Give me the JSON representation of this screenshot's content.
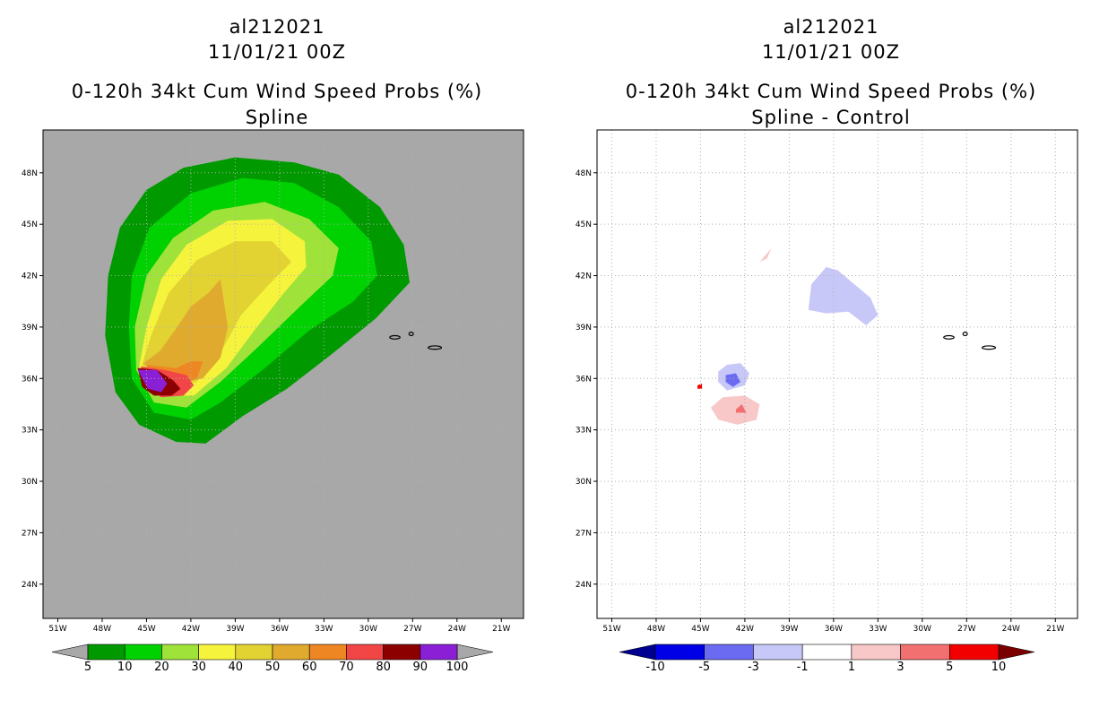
{
  "panels": [
    {
      "storm_id": "al212021",
      "date": "11/01/21 00Z",
      "product": "0-120h 34kt Cum Wind Speed Probs (%)",
      "subtitle": "Spline",
      "colorbar": {
        "labels": [
          "5",
          "10",
          "20",
          "30",
          "40",
          "50",
          "60",
          "70",
          "80",
          "90",
          "100"
        ],
        "colors": [
          "#009a00",
          "#00d100",
          "#9fe23a",
          "#f6f33d",
          "#e2d332",
          "#e0aa2e",
          "#ee8623",
          "#f24646",
          "#8c0000",
          "#8a1fd6"
        ],
        "under_color": "#a8a8a8",
        "over_color": "#a8a8a8"
      }
    },
    {
      "storm_id": "al212021",
      "date": "11/01/21 00Z",
      "product": "0-120h 34kt Cum Wind Speed Probs (%)",
      "subtitle": "Spline - Control",
      "colorbar": {
        "labels": [
          "-10",
          "-5",
          "-3",
          "-1",
          "1",
          "3",
          "5",
          "10"
        ],
        "colors": [
          "#0000e6",
          "#6b6bf2",
          "#c8c8f8",
          "#ffffff",
          "#f8c8c8",
          "#f27070",
          "#f20000"
        ],
        "under_color": "#000090",
        "over_color": "#7a0000"
      }
    }
  ],
  "chart_data": {
    "type": "heatmap",
    "projection": "lat-lon",
    "lon_ticks": [
      "51W",
      "48W",
      "45W",
      "42W",
      "39W",
      "36W",
      "33W",
      "30W",
      "27W",
      "24W",
      "21W"
    ],
    "lat_ticks": [
      "48N",
      "45N",
      "42N",
      "39N",
      "36N",
      "33N",
      "30N",
      "27N",
      "24N"
    ],
    "lon_range": [
      -52,
      -19.5
    ],
    "lat_range": [
      22.0,
      50.5
    ],
    "grid": true,
    "panels": [
      {
        "name": "Spline",
        "field": "34kt cumulative wind speed probability (%)",
        "levels": [
          5,
          10,
          20,
          30,
          40,
          50,
          60,
          70,
          80,
          90,
          100
        ],
        "background_color": "#a8a8a8",
        "contours": [
          {
            "level": 5,
            "polygon": [
              [
                -47.1,
                35.2
              ],
              [
                -47.8,
                38.5
              ],
              [
                -47.6,
                42.0
              ],
              [
                -46.8,
                44.8
              ],
              [
                -45.0,
                47.0
              ],
              [
                -42.5,
                48.3
              ],
              [
                -39.0,
                48.9
              ],
              [
                -35.0,
                48.6
              ],
              [
                -32.0,
                47.9
              ],
              [
                -29.2,
                46.0
              ],
              [
                -27.6,
                43.8
              ],
              [
                -27.2,
                41.6
              ],
              [
                -29.5,
                39.5
              ],
              [
                -32.5,
                37.4
              ],
              [
                -35.5,
                35.4
              ],
              [
                -38.5,
                33.8
              ],
              [
                -41.0,
                32.2
              ],
              [
                -43.0,
                32.3
              ],
              [
                -45.5,
                33.3
              ]
            ]
          },
          {
            "level": 10,
            "polygon": [
              [
                -46.0,
                36.0
              ],
              [
                -46.2,
                39.0
              ],
              [
                -46.0,
                42.0
              ],
              [
                -44.8,
                44.8
              ],
              [
                -42.0,
                46.8
              ],
              [
                -38.5,
                47.7
              ],
              [
                -35.0,
                47.4
              ],
              [
                -32.0,
                46.0
              ],
              [
                -29.8,
                44.0
              ],
              [
                -29.4,
                42.0
              ],
              [
                -31.0,
                40.5
              ],
              [
                -34.0,
                38.8
              ],
              [
                -37.0,
                36.6
              ],
              [
                -40.0,
                34.6
              ],
              [
                -42.0,
                33.6
              ],
              [
                -44.5,
                34.0
              ]
            ]
          },
          {
            "level": 20,
            "polygon": [
              [
                -45.7,
                36.5
              ],
              [
                -45.8,
                39.0
              ],
              [
                -45.0,
                42.0
              ],
              [
                -43.2,
                44.2
              ],
              [
                -40.5,
                45.8
              ],
              [
                -37.0,
                46.3
              ],
              [
                -34.0,
                45.3
              ],
              [
                -32.0,
                43.6
              ],
              [
                -32.4,
                42.0
              ],
              [
                -34.5,
                40.3
              ],
              [
                -37.5,
                37.8
              ],
              [
                -40.0,
                35.8
              ],
              [
                -42.3,
                34.3
              ],
              [
                -44.5,
                34.6
              ]
            ]
          },
          {
            "level": 30,
            "polygon": [
              [
                -45.5,
                36.7
              ],
              [
                -45.0,
                39.0
              ],
              [
                -44.0,
                41.8
              ],
              [
                -42.3,
                43.8
              ],
              [
                -39.5,
                45.2
              ],
              [
                -36.5,
                45.3
              ],
              [
                -34.3,
                44.0
              ],
              [
                -34.2,
                42.5
              ],
              [
                -35.7,
                41.0
              ],
              [
                -37.8,
                38.7
              ],
              [
                -39.6,
                36.6
              ],
              [
                -41.8,
                35.0
              ],
              [
                -44.3,
                35.0
              ]
            ]
          },
          {
            "level": 40,
            "polygon": [
              [
                -45.3,
                36.8
              ],
              [
                -44.7,
                38.5
              ],
              [
                -43.5,
                41.0
              ],
              [
                -41.6,
                42.9
              ],
              [
                -39.0,
                44.0
              ],
              [
                -36.5,
                44.0
              ],
              [
                -35.2,
                42.8
              ],
              [
                -36.7,
                41.5
              ],
              [
                -38.6,
                39.7
              ],
              [
                -40.0,
                37.5
              ],
              [
                -41.6,
                35.8
              ],
              [
                -44.0,
                35.3
              ]
            ]
          },
          {
            "level": 50,
            "polygon": [
              [
                -45.2,
                36.9
              ],
              [
                -44.1,
                37.6
              ],
              [
                -43.0,
                38.9
              ],
              [
                -42.0,
                40.2
              ],
              [
                -40.8,
                41.0
              ],
              [
                -40.0,
                41.8
              ],
              [
                -39.5,
                39.0
              ],
              [
                -40.0,
                37.2
              ],
              [
                -41.2,
                36.0
              ],
              [
                -43.5,
                35.6
              ]
            ]
          },
          {
            "level": 60,
            "polygon": [
              [
                -45.0,
                36.8
              ],
              [
                -43.0,
                36.6
              ],
              [
                -42.0,
                37.0
              ],
              [
                -41.2,
                37.0
              ],
              [
                -41.6,
                36.0
              ],
              [
                -43.0,
                35.5
              ],
              [
                -44.5,
                35.5
              ]
            ]
          },
          {
            "level": 70,
            "polygon": [
              [
                -45.4,
                36.7
              ],
              [
                -43.8,
                36.5
              ],
              [
                -42.3,
                36.2
              ],
              [
                -41.8,
                35.6
              ],
              [
                -42.5,
                35.0
              ],
              [
                -44.0,
                34.9
              ],
              [
                -45.0,
                35.5
              ]
            ]
          },
          {
            "level": 80,
            "polygon": [
              [
                -45.6,
                36.6
              ],
              [
                -44.3,
                36.5
              ],
              [
                -43.2,
                35.9
              ],
              [
                -42.7,
                35.4
              ],
              [
                -43.3,
                35.0
              ],
              [
                -44.5,
                35.0
              ],
              [
                -45.3,
                35.5
              ]
            ]
          },
          {
            "level": 90,
            "polygon": [
              [
                -45.6,
                36.5
              ],
              [
                -44.3,
                36.5
              ],
              [
                -43.6,
                35.7
              ],
              [
                -44.0,
                35.2
              ],
              [
                -44.9,
                35.4
              ]
            ]
          }
        ]
      },
      {
        "name": "Spline - Control",
        "field": "probability difference (%)",
        "levels": [
          -10,
          -5,
          -3,
          -1,
          1,
          3,
          5,
          10
        ],
        "background_color": "#ffffff",
        "contours": [
          {
            "level": -1,
            "polygon": [
              [
                -37.7,
                40.0
              ],
              [
                -37.5,
                41.5
              ],
              [
                -36.5,
                42.5
              ],
              [
                -35.7,
                42.3
              ],
              [
                -34.6,
                41.5
              ],
              [
                -33.5,
                40.7
              ],
              [
                -33.0,
                39.7
              ],
              [
                -33.8,
                39.1
              ],
              [
                -35.0,
                39.9
              ],
              [
                -36.5,
                39.8
              ]
            ]
          },
          {
            "level": -1,
            "polygon": [
              [
                -43.8,
                36.4
              ],
              [
                -43.2,
                36.8
              ],
              [
                -42.3,
                36.9
              ],
              [
                -41.7,
                36.3
              ],
              [
                -42.0,
                35.6
              ],
              [
                -43.2,
                35.3
              ],
              [
                -43.8,
                35.8
              ]
            ]
          },
          {
            "level": -3,
            "polygon": [
              [
                -43.3,
                36.2
              ],
              [
                -42.6,
                36.3
              ],
              [
                -42.3,
                35.8
              ],
              [
                -42.8,
                35.5
              ],
              [
                -43.3,
                35.8
              ]
            ]
          },
          {
            "level": 1,
            "polygon": [
              [
                -43.5,
                34.9
              ],
              [
                -42.0,
                35.0
              ],
              [
                -41.0,
                34.5
              ],
              [
                -41.2,
                33.6
              ],
              [
                -42.5,
                33.3
              ],
              [
                -43.8,
                33.6
              ],
              [
                -44.3,
                34.3
              ]
            ]
          },
          {
            "level": 1,
            "polygon": [
              [
                -41.0,
                42.8
              ],
              [
                -40.2,
                43.6
              ],
              [
                -40.5,
                43.0
              ]
            ]
          },
          {
            "level": 1,
            "polygon": [
              [
                -45.2,
                35.8
              ],
              [
                -44.6,
                35.2
              ],
              [
                -44.9,
                35.5
              ]
            ]
          },
          {
            "level": 3,
            "polygon": [
              [
                -42.6,
                34.2
              ],
              [
                -42.2,
                34.5
              ],
              [
                -41.9,
                34.0
              ],
              [
                -42.6,
                34.0
              ]
            ]
          },
          {
            "level": 5,
            "polygon": [
              [
                -45.2,
                35.6
              ],
              [
                -44.9,
                35.7
              ],
              [
                -44.9,
                35.4
              ],
              [
                -45.2,
                35.4
              ]
            ]
          }
        ]
      }
    ],
    "land_outlines": "Azores islands near 25-29W, 37-39N"
  }
}
